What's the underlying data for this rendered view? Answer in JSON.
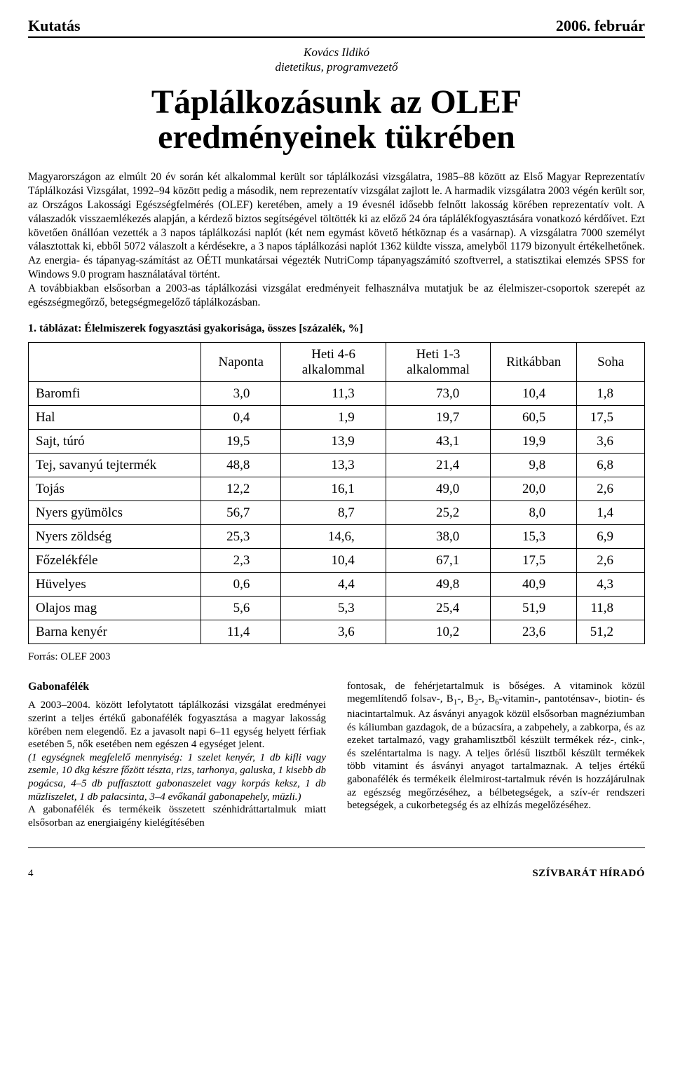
{
  "header": {
    "section": "Kutatás",
    "date": "2006. február",
    "author_name": "Kovács Ildikó",
    "author_role": "dietetikus, programvezető",
    "title_line1": "Táplálkozásunk az OLEF",
    "title_line2": "eredményeinek tükrében"
  },
  "intro_text": "Magyarországon az elmúlt 20 év során két alkalommal került sor táplálkozási vizsgálatra, 1985–88 között az Első Magyar Reprezentatív Táplálkozási Vizsgálat, 1992–94 között pedig a második, nem reprezentatív vizsgálat zajlott le. A harmadik vizsgálatra 2003 végén került sor, az Országos Lakossági Egészségfelmérés (OLEF) keretében, amely a 19 évesnél idősebb felnőtt lakosság körében reprezentatív volt. A válaszadók visszaemlékezés alapján, a kérdező biztos segítségével töltötték ki az előző 24 óra táplálékfogyasztására vonatkozó kérdőívet. Ezt követően önállóan vezették a 3 napos táplálkozási naplót (két nem egymást követő hétköznap és a vasárnap). A vizsgálatra 7000 személyt választottak ki, ebből 5072 válaszolt a kérdésekre, a 3 napos táplálkozási naplót 1362 küldte vissza, amelyből 1179 bizonyult értékelhetőnek. Az energia- és tápanyag-számítást az OÉTI munkatársai végezték NutriComp tápanyagszámító szoftverrel, a statisztikai elemzés SPSS for Windows 9.0 program használatával történt.\nA továbbiakban elsősorban a 2003-as táplálkozási vizsgálat eredményeit felhasználva mutatjuk be az élelmiszer-csoportok szerepét az egészségmegőrző, betegségmegelőző táplálkozásban.",
  "table": {
    "caption": "1. táblázat: Élelmiszerek fogyasztási gyakorisága, összes [százalék, %]",
    "columns": [
      "",
      "Naponta",
      "Heti 4-6\nalkalommal",
      "Heti 1-3\nalkalommal",
      "Ritkábban",
      "Soha"
    ],
    "rows": [
      {
        "label": "Baromfi",
        "values": [
          "3,0",
          "11,3",
          "73,0",
          "10,4",
          "1,8"
        ]
      },
      {
        "label": "Hal",
        "values": [
          "0,4",
          "1,9",
          "19,7",
          "60,5",
          "17,5"
        ]
      },
      {
        "label": "Sajt, túró",
        "values": [
          "19,5",
          "13,9",
          "43,1",
          "19,9",
          "3,6"
        ]
      },
      {
        "label": "Tej, savanyú tejtermék",
        "values": [
          "48,8",
          "13,3",
          "21,4",
          "9,8",
          "6,8"
        ]
      },
      {
        "label": "Tojás",
        "values": [
          "12,2",
          "16,1",
          "49,0",
          "20,0",
          "2,6"
        ]
      },
      {
        "label": "Nyers gyümölcs",
        "values": [
          "56,7",
          "8,7",
          "25,2",
          "8,0",
          "1,4"
        ]
      },
      {
        "label": "Nyers zöldség",
        "values": [
          "25,3",
          "14,6,",
          "38,0",
          "15,3",
          "6,9"
        ]
      },
      {
        "label": "Főzelékféle",
        "values": [
          "2,3",
          "10,4",
          "67,1",
          "17,5",
          "2,6"
        ]
      },
      {
        "label": "Hüvelyes",
        "values": [
          "0,6",
          "4,4",
          "49,8",
          "40,9",
          "4,3"
        ]
      },
      {
        "label": "Olajos mag",
        "values": [
          "5,6",
          "5,3",
          "25,4",
          "51,9",
          "11,8"
        ]
      },
      {
        "label": "Barna kenyér",
        "values": [
          "11,4",
          "3,6",
          "10,2",
          "23,6",
          "51,2"
        ]
      }
    ],
    "source": "Forrás: OLEF 2003",
    "col_widths": [
      "28%",
      "13%",
      "17%",
      "17%",
      "14%",
      "11%"
    ]
  },
  "left_col": {
    "heading": "Gabonafélék",
    "p1": "A 2003–2004. között lefolytatott táplálkozási vizsgálat eredményei szerint a teljes értékű gabonafélék fogyasztása a magyar lakosság körében nem elegendő. Ez a javasolt napi 6–11 egység helyett férfiak esetében 5, nők esetében nem egészen 4 egységet jelent.",
    "p2_italic": "(1 egységnek megfelelő mennyiség: 1 szelet kenyér, 1 db kifli vagy zsemle, 10 dkg készre főzött tészta, rizs, tarhonya, galuska, 1 kisebb db pogácsa, 4–5 db puffasztott gabonaszelet vagy korpás keksz, 1 db müzliszelet, 1 db palacsinta, 3–4 evőkanál gabonapehely, müzli.)",
    "p3": "A gabonafélék és termékeik összetett szénhidráttartalmuk miatt elsősorban az energiaigény kielégítésében"
  },
  "right_col": {
    "text_html": "fontosak, de fehérjetartalmuk is bőséges. A vitaminok közül megemlítendő folsav-, B<sub>1</sub>-, B<sub>2</sub>-, B<sub>6</sub>-vitamin-, pantoténsav-, biotin- és niacintartalmuk. Az ásványi anyagok közül elsősorban magnéziumban és káliumban gazdagok, de a búzacsíra, a zabpehely, a zabkorpa, és az ezeket tartalmazó, vagy grahamlisztből készült termékek réz-, cink-, és szeléntartalma is nagy. A teljes őrlésű lisztből készült termékek több vitamint és ásványi anyagot tartalmaznak. A teljes értékű gabonafélék és termékeik élelmirost-tartalmuk révén is hozzájárulnak az egészség megőrzéséhez, a bélbetegségek, a szív-ér rendszeri betegségek, a cukorbetegség és az elhízás megelőzéséhez."
  },
  "footer": {
    "page": "4",
    "pub": "SZÍVBARÁT HÍRADÓ"
  },
  "colors": {
    "text": "#000000",
    "background": "#ffffff",
    "rule": "#000000"
  }
}
